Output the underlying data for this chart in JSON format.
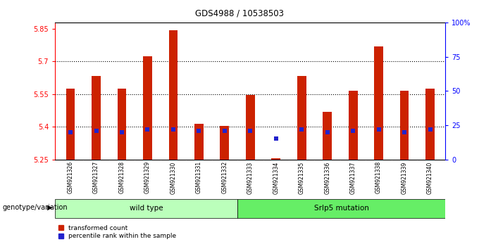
{
  "title": "GDS4988 / 10538503",
  "samples": [
    "GSM921326",
    "GSM921327",
    "GSM921328",
    "GSM921329",
    "GSM921330",
    "GSM921331",
    "GSM921332",
    "GSM921333",
    "GSM921334",
    "GSM921335",
    "GSM921336",
    "GSM921337",
    "GSM921338",
    "GSM921339",
    "GSM921340"
  ],
  "transformed_counts": [
    5.575,
    5.635,
    5.575,
    5.725,
    5.845,
    5.415,
    5.405,
    5.545,
    5.255,
    5.635,
    5.47,
    5.565,
    5.77,
    5.565,
    5.575
  ],
  "percentile_ranks": [
    20,
    21,
    20,
    22,
    22,
    21,
    21,
    21,
    15,
    22,
    20,
    21,
    22,
    20,
    22
  ],
  "baseline": 5.25,
  "ylim_left": [
    5.25,
    5.88
  ],
  "ylim_right": [
    0,
    100
  ],
  "yticks_left": [
    5.25,
    5.4,
    5.55,
    5.7,
    5.85
  ],
  "yticks_right": [
    0,
    25,
    50,
    75,
    100
  ],
  "ytick_labels_left": [
    "5.25",
    "5.4",
    "5.55",
    "5.7",
    "5.85"
  ],
  "ytick_labels_right": [
    "0",
    "25",
    "50",
    "75",
    "100%"
  ],
  "hlines": [
    5.4,
    5.55,
    5.7
  ],
  "bar_color": "#CC2200",
  "blue_color": "#2222CC",
  "bar_width": 0.35,
  "n_wild_type": 7,
  "n_mutation": 8,
  "group_labels": [
    "wild type",
    "Srlp5 mutation"
  ],
  "group_colors_light": [
    "#bbffbb",
    "#66ee66"
  ],
  "legend_items": [
    "transformed count",
    "percentile rank within the sample"
  ],
  "xlabel_genotype": "genotype/variation",
  "sample_bg_color": "#cccccc",
  "plot_bg": "#ffffff"
}
